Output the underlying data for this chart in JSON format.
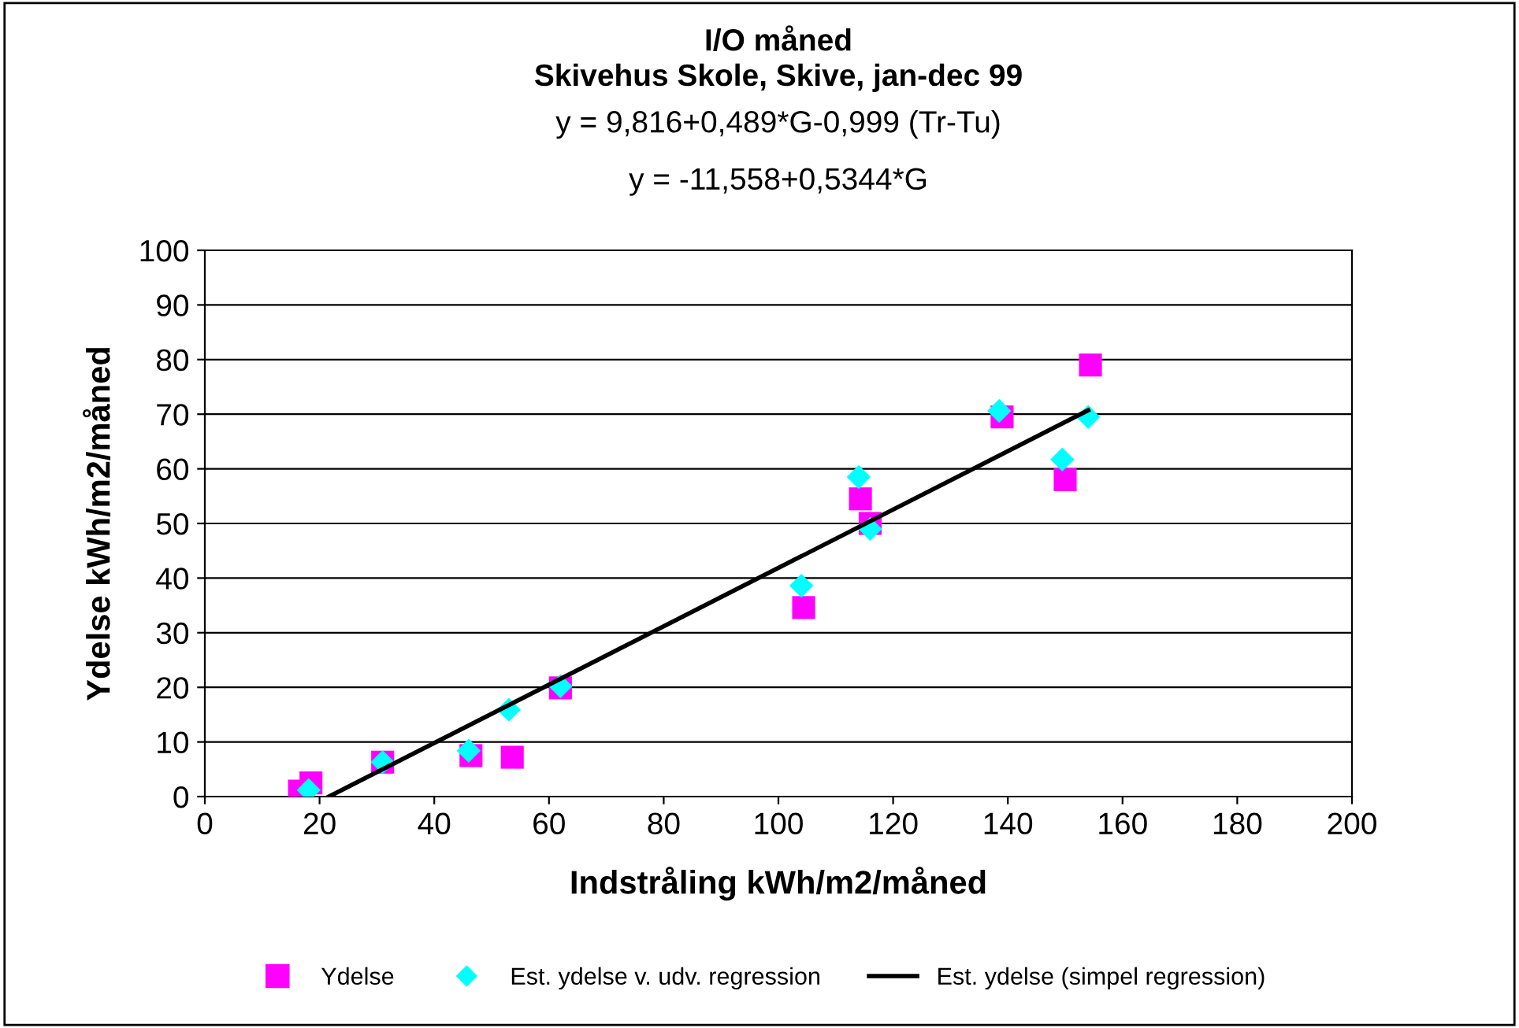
{
  "chart_data": {
    "type": "scatter",
    "title": "I/O måned\nSkivehus Skole, Skive, jan-dec 99",
    "subtitle": "y = 9,816+0,489*G-0,999 (Tr-Tu)\n\ny = -11,558+0,5344*G",
    "xlabel": "Indstråling kWh/m2/måned",
    "ylabel": "Ydelse kWh/m2/måned",
    "xlim": [
      0,
      200
    ],
    "xticks": [
      0,
      20,
      40,
      60,
      80,
      100,
      120,
      140,
      160,
      180,
      200
    ],
    "ylim": [
      0,
      100
    ],
    "yticks": [
      0,
      10,
      20,
      30,
      40,
      50,
      60,
      70,
      80,
      90,
      100
    ],
    "grid": "y",
    "legend": "bottom",
    "series": [
      {
        "name": "Ydelse",
        "marker": "square",
        "color": "#ff00ff",
        "x": [
          16.5,
          18.5,
          31,
          46.4,
          53.6,
          62,
          104.4,
          114.3,
          116,
          139,
          150,
          154.4
        ],
        "values": [
          1,
          2.5,
          6.3,
          7.5,
          7.2,
          19.9,
          34.6,
          54.5,
          50,
          69.5,
          58,
          79
        ]
      },
      {
        "name": "Est. ydelse v. udv. regression",
        "marker": "diamond",
        "color": "#00ffff",
        "x": [
          18.1,
          31,
          46,
          53,
          62,
          104,
          114,
          116,
          138.5,
          149.5,
          154
        ],
        "values": [
          1.2,
          6.3,
          8.4,
          15.9,
          20.2,
          38.6,
          58.5,
          49,
          70.6,
          61.7,
          69.5
        ]
      },
      {
        "name": "Est. ydelse (simpel regression)",
        "type": "line",
        "marker": "none",
        "color": "#000000",
        "x": [
          21.63,
          154
        ],
        "values": [
          0,
          70.7
        ]
      }
    ]
  }
}
